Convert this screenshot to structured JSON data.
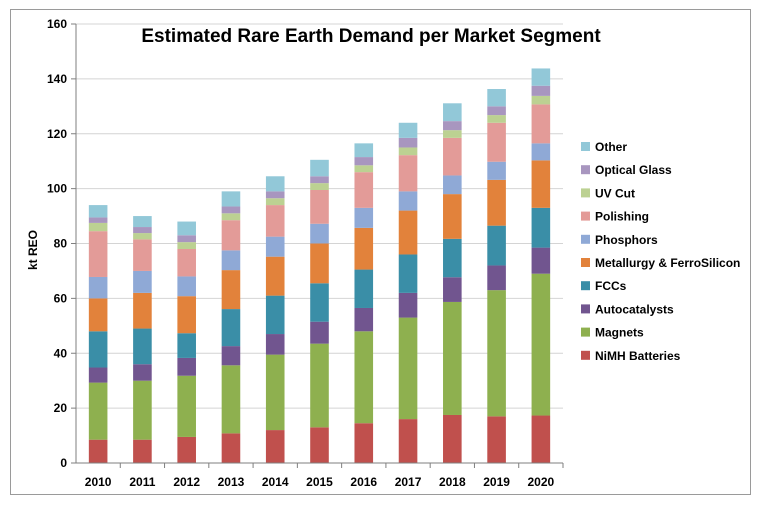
{
  "chart_data": {
    "type": "bar",
    "stacked": true,
    "title": "Estimated Rare Earth Demand per Market Segment",
    "xlabel": "",
    "ylabel": "kt REO",
    "ylim": [
      0,
      160
    ],
    "yticks": [
      0,
      20,
      40,
      60,
      80,
      100,
      120,
      140,
      160
    ],
    "grid": true,
    "legend_position": "right",
    "categories": [
      "2010",
      "2011",
      "2012",
      "2013",
      "2014",
      "2015",
      "2016",
      "2017",
      "2018",
      "2019",
      "2020"
    ],
    "series": [
      {
        "name": "NiMH Batteries",
        "color": "#c0504d",
        "values": [
          8.5,
          8.5,
          9.5,
          10.8,
          12,
          13,
          14.5,
          16,
          17.5,
          17,
          17.3
        ]
      },
      {
        "name": "Magnets",
        "color": "#8eb04f",
        "values": [
          20.8,
          21.5,
          22.3,
          24.8,
          27.5,
          30.5,
          33.5,
          37,
          41.2,
          46,
          51.7
        ]
      },
      {
        "name": "Autocatalysts",
        "color": "#71558f",
        "values": [
          5.5,
          6,
          6.5,
          7,
          7.5,
          8,
          8.5,
          9,
          9,
          9,
          9.5
        ]
      },
      {
        "name": "FCCs",
        "color": "#3a8ea7",
        "values": [
          13.2,
          13,
          9,
          13.5,
          14,
          14,
          14,
          14,
          14,
          14.5,
          14.5
        ]
      },
      {
        "name": "Metallurgy & FerroSilicon",
        "color": "#e2823b",
        "values": [
          12,
          13,
          13.5,
          14.2,
          14.2,
          14.5,
          15.2,
          16,
          16.3,
          16.7,
          17.3
        ]
      },
      {
        "name": "Phosphors",
        "color": "#8fa9d6",
        "values": [
          7.8,
          8,
          7.2,
          7.2,
          7.3,
          7.2,
          7.3,
          7,
          6.8,
          6.6,
          6.2
        ]
      },
      {
        "name": "Polishing",
        "color": "#e39b98",
        "values": [
          16.7,
          11.5,
          10,
          11,
          11.5,
          12.3,
          13,
          13.2,
          13.7,
          14.2,
          14.2
        ]
      },
      {
        "name": "UV Cut",
        "color": "#bcd192",
        "values": [
          3,
          2.3,
          2.5,
          2.5,
          2.5,
          2.5,
          2.5,
          2.8,
          2.8,
          2.8,
          3.1
        ]
      },
      {
        "name": "Optical Glass",
        "color": "#a896bf",
        "values": [
          2,
          2.2,
          2.5,
          2.5,
          2.5,
          2.5,
          3,
          3.5,
          3.3,
          3.2,
          3.7
        ]
      },
      {
        "name": "Other",
        "color": "#92c8d8",
        "values": [
          4.5,
          4,
          5,
          5.5,
          5.5,
          6,
          5,
          5.5,
          6.5,
          6.3,
          6.3
        ]
      }
    ]
  }
}
